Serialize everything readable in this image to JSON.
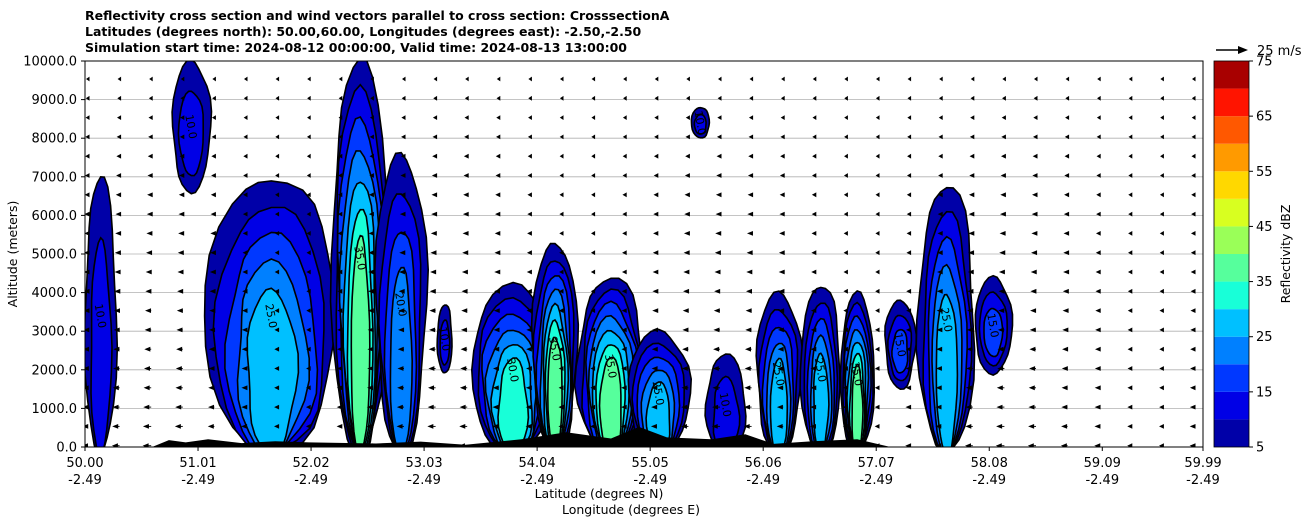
{
  "title": {
    "line1": "Reflectivity cross section and wind vectors parallel to cross section: CrosssectionA",
    "line2": "Latitudes (degrees north): 50.00,60.00, Longitudes (degrees east): -2.50,-2.50",
    "line3": "Simulation start time: 2024-08-12 00:00:00, Valid time: 2024-08-13 13:00:00"
  },
  "colors": {
    "bands": [
      "#0000a8",
      "#0000e6",
      "#0038ff",
      "#0080ff",
      "#00c0ff",
      "#18ffd8",
      "#56ff9c",
      "#9aff58",
      "#d8ff20",
      "#ffd800",
      "#ff9a00",
      "#ff5800",
      "#ff1400",
      "#a80000"
    ],
    "terrain": "#000000",
    "grid": "#b0b0b0"
  },
  "chart_data": {
    "type": "contourf",
    "xlabel": "Latitude (degrees N)",
    "xlabel2": "Longitude (degrees E)",
    "ylabel": "Altitude (meters)",
    "xlim": [
      50.0,
      59.99
    ],
    "ylim": [
      0,
      10000
    ],
    "x_ticks": [
      {
        "lat": "50.00",
        "lon": "-2.49",
        "value": 50.0
      },
      {
        "lat": "51.01",
        "lon": "-2.49",
        "value": 51.01
      },
      {
        "lat": "52.02",
        "lon": "-2.49",
        "value": 52.02
      },
      {
        "lat": "53.03",
        "lon": "-2.49",
        "value": 53.03
      },
      {
        "lat": "54.04",
        "lon": "-2.49",
        "value": 54.04
      },
      {
        "lat": "55.05",
        "lon": "-2.49",
        "value": 55.05
      },
      {
        "lat": "56.06",
        "lon": "-2.49",
        "value": 56.06
      },
      {
        "lat": "57.07",
        "lon": "-2.49",
        "value": 57.07
      },
      {
        "lat": "58.08",
        "lon": "-2.49",
        "value": 58.08
      },
      {
        "lat": "59.09",
        "lon": "-2.49",
        "value": 59.09
      },
      {
        "lat": "59.99",
        "lon": "-2.49",
        "value": 59.99
      }
    ],
    "y_ticks": [
      "0.0",
      "1000.0",
      "2000.0",
      "3000.0",
      "4000.0",
      "5000.0",
      "6000.0",
      "7000.0",
      "8000.0",
      "9000.0",
      "10000.0"
    ],
    "grid": "horizontal",
    "colorbar": {
      "label": "Reflectivity dBZ",
      "levels": [
        5,
        10,
        15,
        20,
        25,
        30,
        35,
        40,
        45,
        50,
        55,
        60,
        65,
        70,
        75
      ],
      "tick_labels": [
        "5",
        "15",
        "25",
        "35",
        "45",
        "55",
        "65",
        "75"
      ]
    },
    "wind_key": "25 m/s",
    "contour_labels": [
      "5.0",
      "10.0",
      "15.0",
      "20.0",
      "25.0",
      "30.0",
      "35.0"
    ],
    "cells": [
      {
        "x0": 50.0,
        "x1": 50.28,
        "top": 7000,
        "bottom": 0,
        "peak": 10
      },
      {
        "x0": 50.78,
        "x1": 51.12,
        "top": 10000,
        "bottom": 6600,
        "peak": 10
      },
      {
        "x0": 51.08,
        "x1": 52.25,
        "top": 7000,
        "bottom": 0,
        "peak": 25
      },
      {
        "x0": 52.2,
        "x1": 52.72,
        "top": 10000,
        "bottom": 0,
        "peak": 35
      },
      {
        "x0": 52.6,
        "x1": 53.05,
        "top": 7600,
        "bottom": 0,
        "peak": 20
      },
      {
        "x0": 53.15,
        "x1": 53.28,
        "top": 3700,
        "bottom": 1900,
        "peak": 10
      },
      {
        "x0": 53.45,
        "x1": 54.2,
        "top": 4200,
        "bottom": 0,
        "peak": 30
      },
      {
        "x0": 54.0,
        "x1": 54.4,
        "top": 5300,
        "bottom": 0,
        "peak": 35
      },
      {
        "x0": 54.4,
        "x1": 55.0,
        "top": 4400,
        "bottom": 0,
        "peak": 35
      },
      {
        "x0": 54.85,
        "x1": 55.4,
        "top": 3000,
        "bottom": 0,
        "peak": 25
      },
      {
        "x0": 55.42,
        "x1": 55.58,
        "top": 8800,
        "bottom": 8000,
        "peak": 10
      },
      {
        "x0": 55.55,
        "x1": 55.9,
        "top": 2400,
        "bottom": 0,
        "peak": 10
      },
      {
        "x0": 56.0,
        "x1": 56.4,
        "top": 4000,
        "bottom": 0,
        "peak": 25
      },
      {
        "x0": 56.4,
        "x1": 56.75,
        "top": 4200,
        "bottom": 0,
        "peak": 25
      },
      {
        "x0": 56.75,
        "x1": 57.05,
        "top": 4000,
        "bottom": 0,
        "peak": 35
      },
      {
        "x0": 57.15,
        "x1": 57.42,
        "top": 3800,
        "bottom": 1500,
        "peak": 15
      },
      {
        "x0": 57.45,
        "x1": 57.95,
        "top": 6800,
        "bottom": 0,
        "peak": 25
      },
      {
        "x0": 57.95,
        "x1": 58.28,
        "top": 4400,
        "bottom": 1900,
        "peak": 15
      }
    ]
  }
}
